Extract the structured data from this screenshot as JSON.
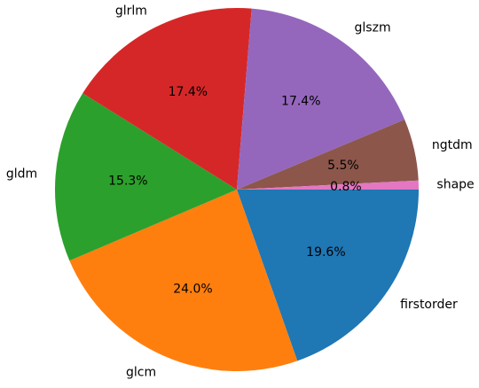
{
  "chart_data": {
    "type": "pie",
    "categories": [
      "firstorder",
      "glcm",
      "gldm",
      "glrlm",
      "glszm",
      "ngtdm",
      "shape"
    ],
    "values": [
      19.6,
      24.0,
      15.3,
      17.4,
      17.4,
      5.5,
      0.8
    ],
    "value_labels": [
      "19.6%",
      "24.0%",
      "15.3%",
      "17.4%",
      "17.4%",
      "5.5%",
      "0.8%"
    ],
    "colors": [
      "#1f77b4",
      "#ff7f0e",
      "#2ca02c",
      "#d62728",
      "#9467bd",
      "#8c564b",
      "#e377c2"
    ],
    "start_angle": 0,
    "direction": "clockwise"
  }
}
